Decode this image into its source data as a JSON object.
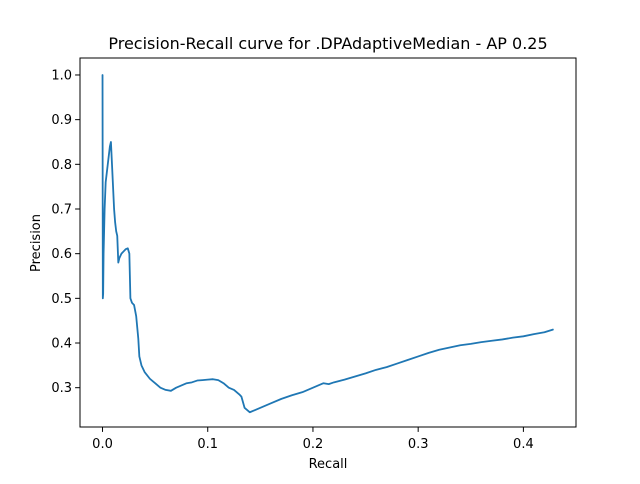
{
  "chart_data": {
    "type": "line",
    "title": "Precision-Recall curve for .DPAdaptiveMedian - AP 0.25",
    "xlabel": "Recall",
    "ylabel": "Precision",
    "xlim": [
      -0.0214,
      0.45
    ],
    "ylim": [
      0.212,
      1.038
    ],
    "xticks": [
      0.0,
      0.1,
      0.2,
      0.3,
      0.4
    ],
    "xtick_labels": [
      "0.0",
      "0.1",
      "0.2",
      "0.3",
      "0.4"
    ],
    "yticks": [
      0.3,
      0.4,
      0.5,
      0.6,
      0.7,
      0.8,
      0.9,
      1.0
    ],
    "ytick_labels": [
      "0.3",
      "0.4",
      "0.5",
      "0.6",
      "0.7",
      "0.8",
      "0.9",
      "1.0"
    ],
    "grid": false,
    "legend": "none",
    "series": [
      {
        "color": "#1f77b4",
        "x": [
          0.0,
          0.0003,
          0.0006,
          0.001,
          0.002,
          0.003,
          0.004,
          0.005,
          0.006,
          0.007,
          0.008,
          0.009,
          0.01,
          0.011,
          0.012,
          0.013,
          0.014,
          0.015,
          0.016,
          0.017,
          0.018,
          0.02,
          0.022,
          0.024,
          0.0255,
          0.0265,
          0.028,
          0.03,
          0.032,
          0.034,
          0.035,
          0.037,
          0.04,
          0.045,
          0.05,
          0.055,
          0.06,
          0.065,
          0.07,
          0.075,
          0.08,
          0.085,
          0.09,
          0.095,
          0.1,
          0.105,
          0.11,
          0.115,
          0.12,
          0.125,
          0.13,
          0.132,
          0.135,
          0.14,
          0.145,
          0.15,
          0.16,
          0.17,
          0.18,
          0.19,
          0.2,
          0.205,
          0.21,
          0.215,
          0.22,
          0.23,
          0.24,
          0.25,
          0.26,
          0.27,
          0.28,
          0.29,
          0.3,
          0.31,
          0.32,
          0.33,
          0.34,
          0.35,
          0.36,
          0.37,
          0.38,
          0.39,
          0.4,
          0.41,
          0.42,
          0.428
        ],
        "y": [
          1.0,
          0.5,
          0.51,
          0.6,
          0.7,
          0.76,
          0.78,
          0.8,
          0.82,
          0.84,
          0.85,
          0.8,
          0.75,
          0.7,
          0.67,
          0.65,
          0.64,
          0.58,
          0.59,
          0.595,
          0.6,
          0.605,
          0.61,
          0.612,
          0.6,
          0.5,
          0.49,
          0.485,
          0.46,
          0.41,
          0.37,
          0.35,
          0.335,
          0.32,
          0.31,
          0.3,
          0.295,
          0.293,
          0.3,
          0.305,
          0.31,
          0.312,
          0.316,
          0.317,
          0.318,
          0.319,
          0.317,
          0.31,
          0.3,
          0.295,
          0.285,
          0.28,
          0.255,
          0.245,
          0.25,
          0.255,
          0.265,
          0.275,
          0.283,
          0.29,
          0.3,
          0.305,
          0.31,
          0.308,
          0.312,
          0.318,
          0.325,
          0.332,
          0.34,
          0.346,
          0.354,
          0.362,
          0.37,
          0.378,
          0.385,
          0.39,
          0.395,
          0.398,
          0.402,
          0.405,
          0.408,
          0.412,
          0.415,
          0.42,
          0.424,
          0.43
        ]
      }
    ]
  }
}
